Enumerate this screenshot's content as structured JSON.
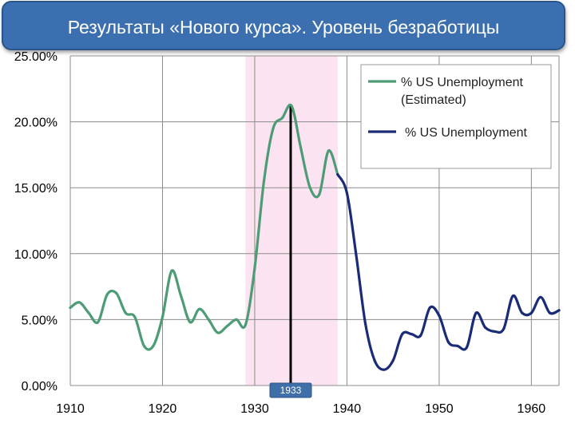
{
  "title": "Результаты «Нового курса». Уровень безработицы",
  "chart_data": {
    "type": "line",
    "title": "",
    "xlabel": "",
    "ylabel": "",
    "xlim": [
      1910,
      1963
    ],
    "ylim": [
      0,
      25
    ],
    "x_ticks": [
      1910,
      1920,
      1930,
      1940,
      1950,
      1960
    ],
    "x_tick_labels": [
      "1910",
      "1920",
      "1930",
      "1940",
      "1950",
      "1960"
    ],
    "y_ticks": [
      0,
      5,
      10,
      15,
      20,
      25
    ],
    "y_tick_labels": [
      "0.00%",
      "5.00%",
      "10.00%",
      "15.00%",
      "20.00%",
      "25.00%"
    ],
    "grid": "horizontal-and-vertical",
    "legend": "top-right",
    "shaded_region": {
      "x_start": 1929,
      "x_end": 1939,
      "color": "#fbe3f1"
    },
    "vertical_marker": {
      "x": 1933,
      "label": "1933"
    },
    "series": [
      {
        "name": "% US Unemployment (Estimated)",
        "legend_lines": [
          "% US Unemployment",
          "(Estimated)"
        ],
        "color": "#4d9c76",
        "x": [
          1910,
          1911,
          1912,
          1913,
          1914,
          1915,
          1916,
          1917,
          1918,
          1919,
          1920,
          1921,
          1922,
          1923,
          1924,
          1925,
          1926,
          1927,
          1928,
          1929,
          1930,
          1931,
          1932,
          1933,
          1934,
          1935,
          1936,
          1937,
          1938,
          1939
        ],
        "y": [
          5.9,
          6.3,
          5.5,
          4.8,
          6.9,
          7.0,
          5.5,
          5.2,
          3.0,
          3.0,
          5.2,
          8.7,
          6.8,
          4.8,
          5.8,
          5.0,
          4.0,
          4.5,
          5.0,
          4.6,
          8.9,
          15.5,
          19.5,
          20.3,
          21.2,
          18.0,
          15.0,
          14.5,
          17.8,
          16.0
        ],
        "endpoints": [
          [
            1934,
            21.2
          ],
          [
            1939,
            16.0
          ]
        ]
      },
      {
        "name": "% US Unemployment",
        "legend_lines": [
          "% US Unemployment"
        ],
        "color": "#1a2b78",
        "x": [
          1939,
          1940,
          1941,
          1942,
          1943,
          1944,
          1945,
          1946,
          1947,
          1948,
          1949,
          1950,
          1951,
          1952,
          1953,
          1954,
          1955,
          1956,
          1957,
          1958,
          1959,
          1960,
          1961,
          1962,
          1963
        ],
        "y": [
          16.0,
          14.6,
          9.9,
          4.7,
          1.9,
          1.2,
          1.9,
          3.9,
          3.9,
          3.8,
          5.9,
          5.3,
          3.3,
          3.0,
          2.9,
          5.5,
          4.4,
          4.1,
          4.3,
          6.8,
          5.5,
          5.5,
          6.7,
          5.5,
          5.7
        ]
      }
    ]
  }
}
